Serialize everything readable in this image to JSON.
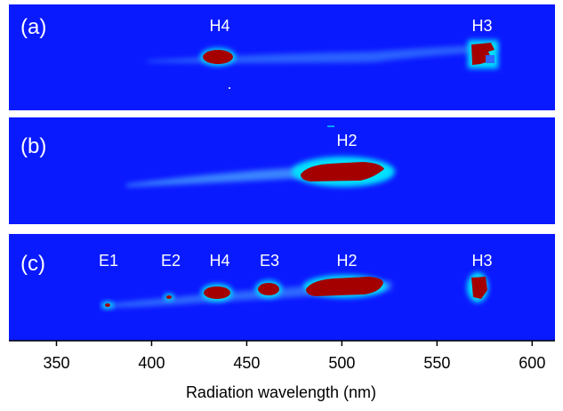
{
  "figure": {
    "panels": [
      {
        "label": "(a)",
        "peaks": [
          {
            "name": "H4",
            "x": 432
          },
          {
            "name": "H3",
            "x": 570
          }
        ]
      },
      {
        "label": "(b)",
        "peaks": [
          {
            "name": "H2",
            "x": 500
          }
        ]
      },
      {
        "label": "(c)",
        "peaks": [
          {
            "name": "E1",
            "x": 372
          },
          {
            "name": "E2",
            "x": 406
          },
          {
            "name": "H4",
            "x": 432
          },
          {
            "name": "E3",
            "x": 458
          },
          {
            "name": "H2",
            "x": 500
          },
          {
            "name": "H3",
            "x": 570
          }
        ]
      }
    ],
    "colors": {
      "background": "#0a1aff",
      "hot": "#a40000",
      "warm": "#00e0ff",
      "edge": "#ffff66"
    }
  },
  "chart_data": {
    "type": "heatmap",
    "xlabel": "Radiation wavelength (nm)",
    "xlim": [
      325,
      612
    ],
    "xticks": [
      350,
      400,
      450,
      500,
      550,
      600
    ],
    "ylabel": "",
    "series": [
      {
        "name": "(a)",
        "features": [
          {
            "label": "H4",
            "center": 432,
            "width": 18,
            "intensity": "saturated"
          },
          {
            "label": "H3",
            "center": 570,
            "width": 10,
            "intensity": "saturated"
          },
          {
            "label": "",
            "from": 370,
            "to": 560,
            "intensity": "weak"
          }
        ]
      },
      {
        "name": "(b)",
        "features": [
          {
            "label": "H2",
            "center": 497,
            "width": 45,
            "intensity": "saturated"
          },
          {
            "label": "",
            "from": 385,
            "to": 525,
            "intensity": "weak"
          }
        ]
      },
      {
        "name": "(c)",
        "features": [
          {
            "label": "E1",
            "center": 372,
            "width": 5,
            "intensity": "saturated"
          },
          {
            "label": "E2",
            "center": 406,
            "width": 5,
            "intensity": "saturated"
          },
          {
            "label": "H4",
            "center": 432,
            "width": 16,
            "intensity": "saturated"
          },
          {
            "label": "E3",
            "center": 458,
            "width": 12,
            "intensity": "saturated"
          },
          {
            "label": "H2",
            "center": 497,
            "width": 40,
            "intensity": "saturated"
          },
          {
            "label": "H3",
            "center": 569,
            "width": 9,
            "intensity": "saturated"
          },
          {
            "label": "",
            "from": 368,
            "to": 525,
            "intensity": "weak"
          }
        ]
      }
    ]
  }
}
